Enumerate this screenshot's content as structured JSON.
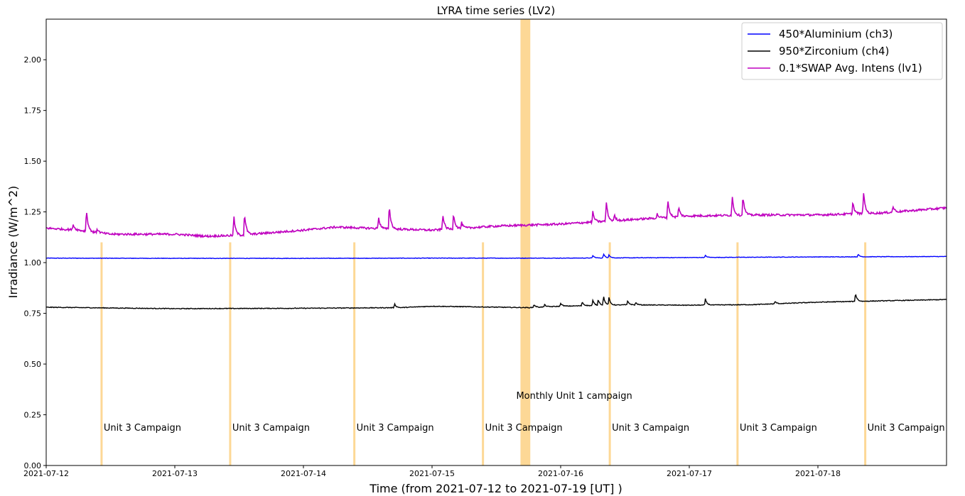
{
  "chart_data": {
    "type": "line",
    "title": "LYRA time series (LV2)",
    "xlabel": "Time (from 2021-07-12 to 2021-07-19 [UT] )",
    "ylabel": "Irradiance (W/m^2)",
    "xlim": [
      "2021-07-12",
      "2021-07-19"
    ],
    "ylim": [
      0.0,
      2.2
    ],
    "x_ticks": [
      "2021-07-12",
      "2021-07-13",
      "2021-07-14",
      "2021-07-15",
      "2021-07-16",
      "2021-07-17",
      "2021-07-18"
    ],
    "y_ticks": [
      "0.00",
      "0.25",
      "0.50",
      "0.75",
      "1.00",
      "1.25",
      "1.50",
      "1.75",
      "2.00"
    ],
    "grid": false,
    "legend_position": "top-right",
    "series": [
      {
        "name": "450*Aluminium (ch3)",
        "color": "#0000ff",
        "baseline": [
          [
            "2021-07-12 00:00",
            1.022
          ],
          [
            "2021-07-13 00:00",
            1.021
          ],
          [
            "2021-07-14 00:00",
            1.021
          ],
          [
            "2021-07-15 00:00",
            1.022
          ],
          [
            "2021-07-16 00:00",
            1.022
          ],
          [
            "2021-07-17 00:00",
            1.025
          ],
          [
            "2021-07-18 00:00",
            1.028
          ],
          [
            "2021-07-19 00:00",
            1.03
          ]
        ],
        "peaks": [
          [
            "2021-07-16 06:00",
            0.012
          ],
          [
            "2021-07-16 08:00",
            0.02
          ],
          [
            "2021-07-16 09:00",
            0.015
          ],
          [
            "2021-07-17 03:00",
            0.01
          ],
          [
            "2021-07-18 07:30",
            0.012
          ]
        ]
      },
      {
        "name": "950*Zirconium (ch4)",
        "color": "#000000",
        "baseline": [
          [
            "2021-07-12 00:00",
            0.78
          ],
          [
            "2021-07-13 00:00",
            0.773
          ],
          [
            "2021-07-14 00:00",
            0.775
          ],
          [
            "2021-07-14 18:00",
            0.778
          ],
          [
            "2021-07-15 00:00",
            0.785
          ],
          [
            "2021-07-15 18:00",
            0.778
          ],
          [
            "2021-07-16 00:00",
            0.785
          ],
          [
            "2021-07-16 12:00",
            0.792
          ],
          [
            "2021-07-17 00:00",
            0.79
          ],
          [
            "2021-07-17 12:00",
            0.793
          ],
          [
            "2021-07-18 00:00",
            0.805
          ],
          [
            "2021-07-19 00:00",
            0.818
          ]
        ],
        "peaks": [
          [
            "2021-07-14 17:00",
            0.02
          ],
          [
            "2021-07-15 19:00",
            0.015
          ],
          [
            "2021-07-15 21:00",
            0.012
          ],
          [
            "2021-07-16 00:00",
            0.015
          ],
          [
            "2021-07-16 04:00",
            0.02
          ],
          [
            "2021-07-16 06:00",
            0.025
          ],
          [
            "2021-07-16 07:00",
            0.03
          ],
          [
            "2021-07-16 08:00",
            0.045
          ],
          [
            "2021-07-16 09:00",
            0.035
          ],
          [
            "2021-07-16 12:30",
            0.02
          ],
          [
            "2021-07-16 14:00",
            0.012
          ],
          [
            "2021-07-17 03:00",
            0.03
          ],
          [
            "2021-07-17 16:00",
            0.012
          ],
          [
            "2021-07-18 07:00",
            0.04
          ]
        ]
      },
      {
        "name": "0.1*SWAP Avg. Intens (lv1)",
        "color": "#bf00bf",
        "baseline": [
          [
            "2021-07-12 00:00",
            1.17
          ],
          [
            "2021-07-12 06:00",
            1.16
          ],
          [
            "2021-07-12 12:00",
            1.14
          ],
          [
            "2021-07-13 00:00",
            1.14
          ],
          [
            "2021-07-13 06:00",
            1.13
          ],
          [
            "2021-07-13 12:00",
            1.135
          ],
          [
            "2021-07-14 00:00",
            1.16
          ],
          [
            "2021-07-14 06:00",
            1.175
          ],
          [
            "2021-07-14 12:00",
            1.17
          ],
          [
            "2021-07-15 00:00",
            1.16
          ],
          [
            "2021-07-15 12:00",
            1.18
          ],
          [
            "2021-07-16 00:00",
            1.19
          ],
          [
            "2021-07-16 12:00",
            1.21
          ],
          [
            "2021-07-17 00:00",
            1.23
          ],
          [
            "2021-07-17 12:00",
            1.235
          ],
          [
            "2021-07-18 00:00",
            1.235
          ],
          [
            "2021-07-18 12:00",
            1.245
          ],
          [
            "2021-07-19 00:00",
            1.27
          ]
        ],
        "peaks": [
          [
            "2021-07-12 05:00",
            0.03
          ],
          [
            "2021-07-12 07:30",
            0.11
          ],
          [
            "2021-07-12 09:30",
            0.02
          ],
          [
            "2021-07-13 11:00",
            0.1
          ],
          [
            "2021-07-13 13:00",
            0.11
          ],
          [
            "2021-07-14 14:00",
            0.06
          ],
          [
            "2021-07-14 16:00",
            0.12
          ],
          [
            "2021-07-15 02:00",
            0.08
          ],
          [
            "2021-07-15 04:00",
            0.08
          ],
          [
            "2021-07-15 05:30",
            0.03
          ],
          [
            "2021-07-16 06:00",
            0.05
          ],
          [
            "2021-07-16 08:30",
            0.1
          ],
          [
            "2021-07-16 10:00",
            0.03
          ],
          [
            "2021-07-16 18:00",
            0.02
          ],
          [
            "2021-07-16 20:00",
            0.09
          ],
          [
            "2021-07-16 22:00",
            0.05
          ],
          [
            "2021-07-17 08:00",
            0.1
          ],
          [
            "2021-07-17 10:00",
            0.1
          ],
          [
            "2021-07-18 06:30",
            0.06
          ],
          [
            "2021-07-18 08:30",
            0.11
          ],
          [
            "2021-07-18 14:00",
            0.03
          ],
          [
            "2021-07-19 08:00",
            0.08
          ],
          [
            "2021-07-19 10:00",
            0.07
          ]
        ]
      }
    ],
    "campaign_markers": [
      {
        "time": "2021-07-12 10:20",
        "label": "Unit 3 Campaign"
      },
      {
        "time": "2021-07-13 10:20",
        "label": "Unit 3 Campaign"
      },
      {
        "time": "2021-07-14 09:30",
        "label": "Unit 3 Campaign"
      },
      {
        "time": "2021-07-15 09:30",
        "label": "Unit 3 Campaign"
      },
      {
        "time": "2021-07-16 09:10",
        "label": "Unit 3 Campaign"
      },
      {
        "time": "2021-07-17 09:00",
        "label": "Unit 3 Campaign"
      },
      {
        "time": "2021-07-18 08:50",
        "label": "Unit 3 Campaign"
      }
    ],
    "monthly_campaign": {
      "start": "2021-07-15 16:30",
      "end": "2021-07-15 18:20",
      "label": "Monthly Unit 1 campaign"
    },
    "marker_color": "#fdd896"
  }
}
